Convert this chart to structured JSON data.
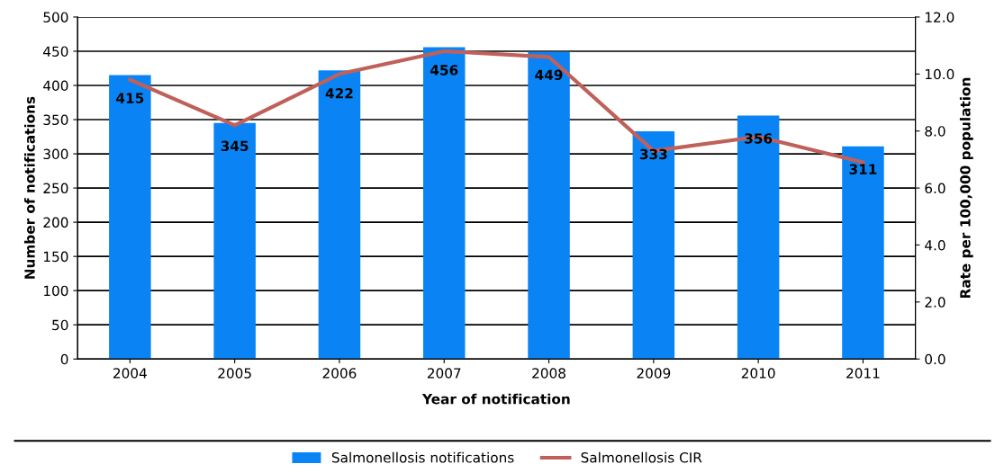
{
  "chart_data": {
    "type": "bar",
    "xlabel": "Year of notification",
    "ylabel": "Number of notifications",
    "y2label": "Rate per 100,000 population",
    "categories": [
      "2004",
      "2005",
      "2006",
      "2007",
      "2008",
      "2009",
      "2010",
      "2011"
    ],
    "series": [
      {
        "name": "Salmonellosis notifications",
        "color": "#0a84f5",
        "values": [
          415,
          345,
          422,
          456,
          449,
          333,
          356,
          311
        ],
        "value_labels": [
          "415",
          "345",
          "422",
          "456",
          "449",
          "333",
          "356",
          "311"
        ]
      },
      {
        "name": "Salmonellosis CIR",
        "type": "line",
        "axis": "y2",
        "color": "#c0605a",
        "values": [
          9.8,
          8.2,
          10.0,
          10.8,
          10.6,
          7.3,
          7.8,
          6.9
        ]
      }
    ],
    "ylim": [
      0,
      500
    ],
    "yticks": [
      0,
      50,
      100,
      150,
      200,
      250,
      300,
      350,
      400,
      450,
      500
    ],
    "y2lim": [
      0,
      12
    ],
    "y2ticks": [
      {
        "value": 0,
        "label": "0.0"
      },
      {
        "value": 2,
        "label": "2.0"
      },
      {
        "value": 4,
        "label": "4.0"
      },
      {
        "value": 6,
        "label": "6.0"
      },
      {
        "value": 8,
        "label": "8.0"
      },
      {
        "value": 10,
        "label": "10.0"
      },
      {
        "value": 12,
        "label": "12.0"
      }
    ],
    "grid": "y",
    "legend": "bottom",
    "marker": "none",
    "line_style": "solid"
  }
}
